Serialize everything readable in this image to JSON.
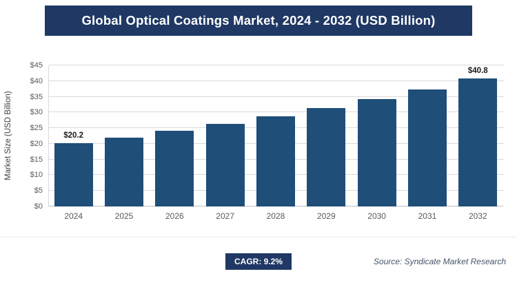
{
  "header": {
    "title": "Global Optical Coatings Market, 2024 - 2032 (USD Billion)"
  },
  "chart_data": {
    "type": "bar",
    "categories": [
      "2024",
      "2025",
      "2026",
      "2027",
      "2028",
      "2029",
      "2030",
      "2031",
      "2032"
    ],
    "values": [
      20.2,
      22.0,
      24.1,
      26.3,
      28.7,
      31.3,
      34.2,
      37.3,
      40.8
    ],
    "bar_labels": [
      "$20.2",
      "",
      "",
      "",
      "",
      "",
      "",
      "",
      "$40.8"
    ],
    "title": "Global Optical Coatings Market, 2024 - 2032 (USD Billion)",
    "xlabel": "",
    "ylabel": "Market Size (USD Billion)",
    "ylim": [
      0,
      45
    ],
    "ytick_step": 5,
    "ytick_prefix": "$",
    "grid": true,
    "legend": "none",
    "bar_color": "#1f4e79"
  },
  "footer": {
    "cagr_label": "CAGR: 9.2%",
    "source": "Source: Syndicate Market Research"
  }
}
